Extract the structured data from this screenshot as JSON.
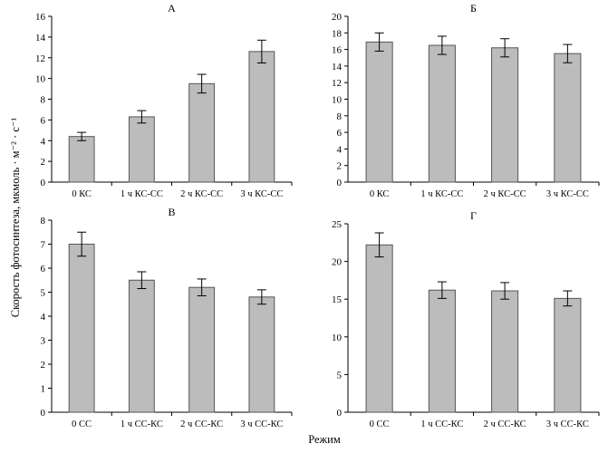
{
  "ylabel": "Скорость фотосинтеза, мкмоль · м⁻² · с⁻¹",
  "xlabel": "Режим",
  "colors": {
    "bar_fill": "#bcbcbc",
    "bar_stroke": "#555555",
    "axis": "#000000"
  },
  "chart_data": [
    {
      "type": "bar",
      "title": "А",
      "categories": [
        "0 КС",
        "1 ч КС-СС",
        "2 ч КС-СС",
        "3 ч КС-СС"
      ],
      "values": [
        4.4,
        6.3,
        9.5,
        12.6
      ],
      "errors": [
        0.4,
        0.6,
        0.9,
        1.1
      ],
      "ylim": [
        0,
        16
      ],
      "yticks": [
        0,
        2,
        4,
        6,
        8,
        10,
        12,
        14,
        16
      ]
    },
    {
      "type": "bar",
      "title": "Б",
      "categories": [
        "0 КС",
        "1 ч КС-СС",
        "2 ч КС-СС",
        "3 ч КС-СС"
      ],
      "values": [
        16.9,
        16.5,
        16.2,
        15.5
      ],
      "errors": [
        1.1,
        1.1,
        1.1,
        1.1
      ],
      "ylim": [
        0,
        20
      ],
      "yticks": [
        0,
        2,
        4,
        6,
        8,
        10,
        12,
        14,
        16,
        18,
        20
      ]
    },
    {
      "type": "bar",
      "title": "В",
      "categories": [
        "0 СС",
        "1 ч СС-КС",
        "2 ч СС-КС",
        "3 ч СС-КС"
      ],
      "values": [
        7.0,
        5.5,
        5.2,
        4.8
      ],
      "errors": [
        0.5,
        0.35,
        0.35,
        0.3
      ],
      "ylim": [
        0,
        8
      ],
      "yticks": [
        0,
        1,
        2,
        3,
        4,
        5,
        6,
        7,
        8
      ]
    },
    {
      "type": "bar",
      "title": "Г",
      "categories": [
        "0 СС",
        "1 ч СС-КС",
        "2 ч СС-КС",
        "3 ч СС-КС"
      ],
      "values": [
        22.2,
        16.2,
        16.1,
        15.1
      ],
      "errors": [
        1.6,
        1.1,
        1.1,
        1.0
      ],
      "ylim": [
        0,
        25
      ],
      "yticks": [
        0,
        5,
        10,
        15,
        20,
        25
      ]
    }
  ]
}
